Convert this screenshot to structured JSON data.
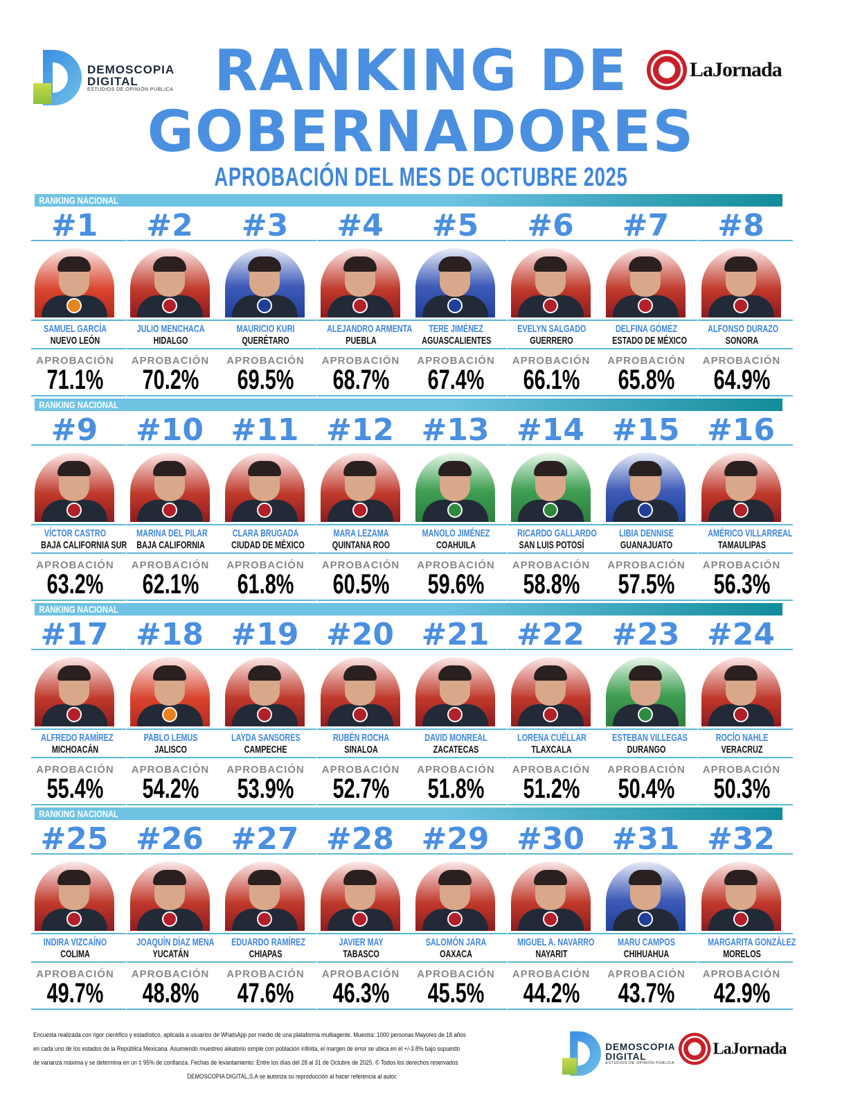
{
  "brand": {
    "name_line1": "DEMOSCOPIA",
    "name_line2": "DIGITAL",
    "tagline": "ESTUDIOS DE OPINIÓN PÚBLICA",
    "partner": "LaJornada"
  },
  "header": {
    "title_line1": "RANKING DE",
    "title_line2": "GOBERNADORES",
    "subtitle": "APROBACIÓN DEL MES DE OCTUBRE 2025"
  },
  "section_label": "RANKING NACIONAL",
  "approval_label": "APROBACIÓN",
  "colors": {
    "accent": "#4a8fe0",
    "morena": "#8e1b1f",
    "pan": "#1f3f99",
    "mc": "#e8841f",
    "pvem_pri": "#2e8b3e"
  },
  "governors": [
    {
      "rank": "#1",
      "name": "SAMUEL GARCÍA",
      "state": "NUEVO LEÓN",
      "approval": "71.1%",
      "party": "mc"
    },
    {
      "rank": "#2",
      "name": "JULIO MENCHACA",
      "state": "HIDALGO",
      "approval": "70.2%",
      "party": "morena"
    },
    {
      "rank": "#3",
      "name": "MAURICIO KURI",
      "state": "QUERÉTARO",
      "approval": "69.5%",
      "party": "pan"
    },
    {
      "rank": "#4",
      "name": "ALEJANDRO ARMENTA",
      "state": "PUEBLA",
      "approval": "68.7%",
      "party": "morena"
    },
    {
      "rank": "#5",
      "name": "TERE JIMÉNEZ",
      "state": "AGUASCALIENTES",
      "approval": "67.4%",
      "party": "pan"
    },
    {
      "rank": "#6",
      "name": "EVELYN SALGADO",
      "state": "GUERRERO",
      "approval": "66.1%",
      "party": "morena"
    },
    {
      "rank": "#7",
      "name": "DELFINA GÓMEZ",
      "state": "ESTADO DE MÉXICO",
      "approval": "65.8%",
      "party": "morena"
    },
    {
      "rank": "#8",
      "name": "ALFONSO DURAZO",
      "state": "SONORA",
      "approval": "64.9%",
      "party": "morena"
    },
    {
      "rank": "#9",
      "name": "VÍCTOR CASTRO",
      "state": "BAJA CALIFORNIA SUR",
      "approval": "63.2%",
      "party": "morena"
    },
    {
      "rank": "#10",
      "name": "MARINA DEL PILAR",
      "state": "BAJA CALIFORNIA",
      "approval": "62.1%",
      "party": "morena"
    },
    {
      "rank": "#11",
      "name": "CLARA BRUGADA",
      "state": "CIUDAD DE MÉXICO",
      "approval": "61.8%",
      "party": "morena"
    },
    {
      "rank": "#12",
      "name": "MARA LEZAMA",
      "state": "QUINTANA ROO",
      "approval": "60.5%",
      "party": "morena"
    },
    {
      "rank": "#13",
      "name": "MANOLO JIMÉNEZ",
      "state": "COAHUILA",
      "approval": "59.6%",
      "party": "pri"
    },
    {
      "rank": "#14",
      "name": "RICARDO GALLARDO",
      "state": "SAN LUIS POTOSÍ",
      "approval": "58.8%",
      "party": "pvem"
    },
    {
      "rank": "#15",
      "name": "LIBIA DENNISE",
      "state": "GUANAJUATO",
      "approval": "57.5%",
      "party": "pan"
    },
    {
      "rank": "#16",
      "name": "AMÉRICO VILLARREAL",
      "state": "TAMAULIPAS",
      "approval": "56.3%",
      "party": "morena"
    },
    {
      "rank": "#17",
      "name": "ALFREDO RAMÍREZ",
      "state": "MICHOACÁN",
      "approval": "55.4%",
      "party": "morena"
    },
    {
      "rank": "#18",
      "name": "PABLO LEMUS",
      "state": "JALISCO",
      "approval": "54.2%",
      "party": "mc"
    },
    {
      "rank": "#19",
      "name": "LAYDA SANSORES",
      "state": "CAMPECHE",
      "approval": "53.9%",
      "party": "morena"
    },
    {
      "rank": "#20",
      "name": "RUBÉN ROCHA",
      "state": "SINALOA",
      "approval": "52.7%",
      "party": "morena"
    },
    {
      "rank": "#21",
      "name": "DAVID MONREAL",
      "state": "ZACATECAS",
      "approval": "51.8%",
      "party": "morena"
    },
    {
      "rank": "#22",
      "name": "LORENA CUÉLLAR",
      "state": "TLAXCALA",
      "approval": "51.2%",
      "party": "morena"
    },
    {
      "rank": "#23",
      "name": "ESTEBAN VILLEGAS",
      "state": "DURANGO",
      "approval": "50.4%",
      "party": "pri"
    },
    {
      "rank": "#24",
      "name": "ROCÍO NAHLE",
      "state": "VERACRUZ",
      "approval": "50.3%",
      "party": "morena"
    },
    {
      "rank": "#25",
      "name": "INDIRA VIZCAÍNO",
      "state": "COLIMA",
      "approval": "49.7%",
      "party": "morena"
    },
    {
      "rank": "#26",
      "name": "JOAQUÍN DÍAZ MENA",
      "state": "YUCATÁN",
      "approval": "48.8%",
      "party": "morena"
    },
    {
      "rank": "#27",
      "name": "EDUARDO RAMÍREZ",
      "state": "CHIAPAS",
      "approval": "47.6%",
      "party": "morena"
    },
    {
      "rank": "#28",
      "name": "JAVIER MAY",
      "state": "TABASCO",
      "approval": "46.3%",
      "party": "morena"
    },
    {
      "rank": "#29",
      "name": "SALOMÓN JARA",
      "state": "OAXACA",
      "approval": "45.5%",
      "party": "morena"
    },
    {
      "rank": "#30",
      "name": "MIGUEL A. NAVARRO",
      "state": "NAYARIT",
      "approval": "44.2%",
      "party": "morena"
    },
    {
      "rank": "#31",
      "name": "MARU CAMPOS",
      "state": "CHIHUAHUA",
      "approval": "43.7%",
      "party": "pan"
    },
    {
      "rank": "#32",
      "name": "MARGARITA GONZÁLEZ",
      "state": "MORELOS",
      "approval": "42.9%",
      "party": "morena"
    }
  ],
  "footer": {
    "line1": "Encuesta realizada con rigor científico y estadístico, aplicada a usuarios de WhatsApp por medio de una plataforma multiagente. Muestra: 1000 personas Mayores de 18 años",
    "line2": "en cada uno de los estados de la República Mexicana. Asumiendo muestreo aleatorio simple con población infinita, el margen de error se ubica en el +/-3.8% bajo supuesto",
    "line3": "de varianza máxima y se determina en un ‡ 95% de confianza. Fechas de levantamiento: Entre los días del 28 al 31 de Octubre de 2025. © Todos los derechos reservados",
    "line4": "DEMOSCOPIA DIGITAL,S.A se autoriza su reproducción al hacer referencia al autor."
  }
}
